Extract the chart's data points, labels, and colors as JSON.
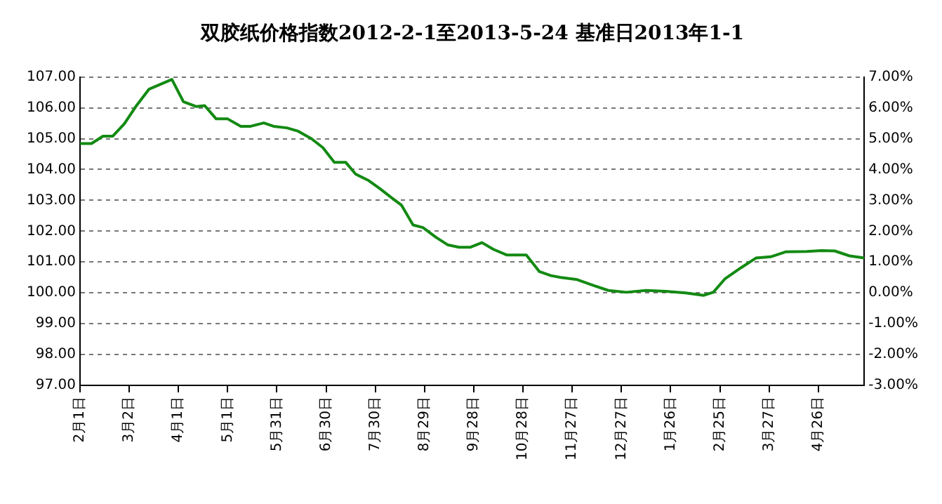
{
  "chart_data": {
    "type": "line",
    "title": "双胶纸价格指数2012-2-1至2013-5-24 基准日2013年1-1",
    "x": [
      "2012-02-01",
      "2012-02-08",
      "2012-02-15",
      "2012-02-21",
      "2012-02-28",
      "2012-03-06",
      "2012-03-14",
      "2012-03-21",
      "2012-03-28",
      "2012-04-04",
      "2012-04-12",
      "2012-04-17",
      "2012-04-24",
      "2012-05-01",
      "2012-05-09",
      "2012-05-15",
      "2012-05-23",
      "2012-05-29",
      "2012-06-06",
      "2012-06-13",
      "2012-06-21",
      "2012-06-28",
      "2012-07-05",
      "2012-07-12",
      "2012-07-18",
      "2012-07-26",
      "2012-08-02",
      "2012-08-09",
      "2012-08-15",
      "2012-08-22",
      "2012-08-28",
      "2012-09-05",
      "2012-09-12",
      "2012-09-19",
      "2012-09-26",
      "2012-10-03",
      "2012-10-10",
      "2012-10-18",
      "2012-10-30",
      "2012-11-07",
      "2012-11-14",
      "2012-11-20",
      "2012-11-30",
      "2012-12-09",
      "2012-12-19",
      "2012-12-30",
      "2013-01-11",
      "2013-01-23",
      "2013-02-04",
      "2013-02-15",
      "2013-02-21",
      "2013-02-28",
      "2013-03-10",
      "2013-03-19",
      "2013-03-28",
      "2013-04-06",
      "2013-04-19",
      "2013-04-28",
      "2013-05-06",
      "2013-05-15",
      "2013-05-24"
    ],
    "series": [
      {
        "color": "#138a13",
        "values": [
          104.84,
          104.84,
          105.08,
          105.08,
          105.48,
          106.04,
          106.6,
          106.76,
          106.92,
          106.2,
          106.04,
          106.07,
          105.64,
          105.64,
          105.4,
          105.4,
          105.51,
          105.4,
          105.35,
          105.24,
          105.0,
          104.71,
          104.23,
          104.23,
          103.85,
          103.64,
          103.37,
          103.08,
          102.84,
          102.2,
          102.12,
          101.8,
          101.56,
          101.48,
          101.48,
          101.63,
          101.41,
          101.23,
          101.23,
          100.69,
          100.56,
          100.5,
          100.43,
          100.26,
          100.08,
          100.02,
          100.08,
          100.05,
          100.0,
          99.92,
          100.02,
          100.45,
          100.82,
          101.13,
          101.17,
          101.33,
          101.34,
          101.37,
          101.36,
          101.2,
          101.13
        ]
      }
    ],
    "xlim": [
      "2012-02-01",
      "2013-05-24"
    ],
    "xticks": [
      {
        "value": "2012-02-01",
        "label": "2月1日"
      },
      {
        "value": "2012-03-02",
        "label": "3月2日"
      },
      {
        "value": "2012-04-01",
        "label": "4月1日"
      },
      {
        "value": "2012-05-01",
        "label": "5月1日"
      },
      {
        "value": "2012-05-31",
        "label": "5月31日"
      },
      {
        "value": "2012-06-30",
        "label": "6月30日"
      },
      {
        "value": "2012-07-30",
        "label": "7月30日"
      },
      {
        "value": "2012-08-29",
        "label": "8月29日"
      },
      {
        "value": "2012-09-28",
        "label": "9月28日"
      },
      {
        "value": "2012-10-28",
        "label": "10月28日"
      },
      {
        "value": "2012-11-27",
        "label": "11月27日"
      },
      {
        "value": "2012-12-27",
        "label": "12月27日"
      },
      {
        "value": "2013-01-26",
        "label": "1月26日"
      },
      {
        "value": "2013-02-25",
        "label": "2月25日"
      },
      {
        "value": "2013-03-27",
        "label": "3月27日"
      },
      {
        "value": "2013-04-26",
        "label": "4月26日"
      }
    ],
    "ylim": [
      97,
      107
    ],
    "yticks": [
      {
        "value": 97,
        "label": "97.00"
      },
      {
        "value": 98,
        "label": "98.00"
      },
      {
        "value": 99,
        "label": "99.00"
      },
      {
        "value": 100,
        "label": "100.00"
      },
      {
        "value": 101,
        "label": "101.00"
      },
      {
        "value": 102,
        "label": "102.00"
      },
      {
        "value": 103,
        "label": "103.00"
      },
      {
        "value": 104,
        "label": "104.00"
      },
      {
        "value": 105,
        "label": "105.00"
      },
      {
        "value": 106,
        "label": "106.00"
      },
      {
        "value": 107,
        "label": "107.00"
      }
    ],
    "y2lim": [
      -3,
      7
    ],
    "y2ticks": [
      {
        "value": -3,
        "label": "-3.00%"
      },
      {
        "value": -2,
        "label": "-2.00%"
      },
      {
        "value": -1,
        "label": "-1.00%"
      },
      {
        "value": 0,
        "label": "0.00%"
      },
      {
        "value": 1,
        "label": "1.00%"
      },
      {
        "value": 2,
        "label": "2.00%"
      },
      {
        "value": 3,
        "label": "3.00%"
      },
      {
        "value": 4,
        "label": "4.00%"
      },
      {
        "value": 5,
        "label": "5.00%"
      },
      {
        "value": 6,
        "label": "6.00%"
      },
      {
        "value": 7,
        "label": "7.00%"
      }
    ],
    "grid": "y",
    "line_style": "solid",
    "marker": "none",
    "legend": false
  }
}
